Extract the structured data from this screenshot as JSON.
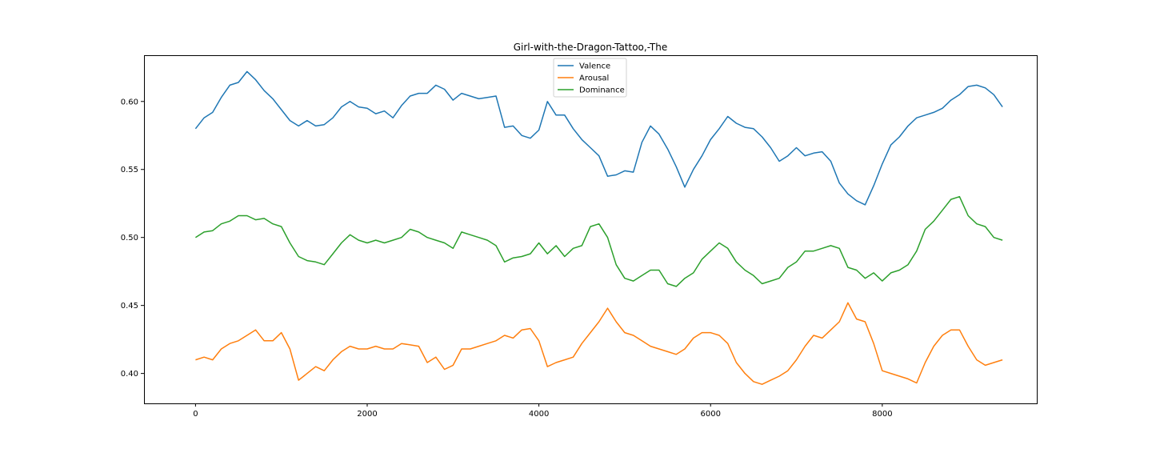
{
  "chart_data": {
    "type": "line",
    "title": "Girl-with-the-Dragon-Tattoo,-The",
    "xlabel": "",
    "ylabel": "",
    "xlim": [
      -600,
      9800
    ],
    "ylim": [
      0.378,
      0.634
    ],
    "x_ticks": [
      0,
      2000,
      4000,
      6000,
      8000
    ],
    "x_tick_labels": [
      "0",
      "2000",
      "4000",
      "6000",
      "8000"
    ],
    "y_ticks": [
      0.4,
      0.45,
      0.5,
      0.55,
      0.6
    ],
    "y_tick_labels": [
      "0.40",
      "0.45",
      "0.50",
      "0.55",
      "0.60"
    ],
    "grid": false,
    "legend_position": "top-center",
    "series": [
      {
        "name": "Valence",
        "color": "#1f77b4",
        "x": [
          0,
          100,
          200,
          300,
          400,
          500,
          600,
          700,
          800,
          900,
          1000,
          1100,
          1200,
          1300,
          1400,
          1500,
          1600,
          1700,
          1800,
          1900,
          2000,
          2100,
          2200,
          2300,
          2400,
          2500,
          2600,
          2700,
          2800,
          2900,
          3000,
          3100,
          3200,
          3300,
          3400,
          3500,
          3600,
          3700,
          3800,
          3900,
          4000,
          4100,
          4200,
          4300,
          4400,
          4500,
          4600,
          4700,
          4800,
          4900,
          5000,
          5100,
          5200,
          5300,
          5400,
          5500,
          5600,
          5700,
          5800,
          5900,
          6000,
          6100,
          6200,
          6300,
          6400,
          6500,
          6600,
          6700,
          6800,
          6900,
          7000,
          7100,
          7200,
          7300,
          7400,
          7500,
          7600,
          7700,
          7800,
          7900,
          8000,
          8100,
          8200,
          8300,
          8400,
          8500,
          8600,
          8700,
          8800,
          8900,
          9000,
          9100,
          9200,
          9300,
          9400
        ],
        "values": [
          0.58,
          0.588,
          0.592,
          0.603,
          0.612,
          0.614,
          0.622,
          0.616,
          0.608,
          0.602,
          0.594,
          0.586,
          0.582,
          0.586,
          0.582,
          0.583,
          0.588,
          0.596,
          0.6,
          0.596,
          0.595,
          0.591,
          0.593,
          0.588,
          0.597,
          0.604,
          0.606,
          0.606,
          0.612,
          0.609,
          0.601,
          0.606,
          0.604,
          0.602,
          0.603,
          0.604,
          0.581,
          0.582,
          0.575,
          0.573,
          0.579,
          0.6,
          0.59,
          0.59,
          0.58,
          0.572,
          0.566,
          0.56,
          0.545,
          0.546,
          0.549,
          0.548,
          0.57,
          0.582,
          0.576,
          0.565,
          0.552,
          0.537,
          0.55,
          0.56,
          0.572,
          0.58,
          0.589,
          0.584,
          0.581,
          0.58,
          0.574,
          0.566,
          0.556,
          0.56,
          0.566,
          0.56,
          0.562,
          0.563,
          0.556,
          0.54,
          0.532,
          0.527,
          0.524,
          0.538,
          0.554,
          0.568,
          0.574,
          0.582,
          0.588,
          0.59,
          0.592,
          0.595,
          0.601,
          0.605,
          0.611,
          0.612,
          0.61,
          0.605,
          0.596
        ]
      },
      {
        "name": "Arousal",
        "color": "#ff7f0e",
        "x": [
          0,
          100,
          200,
          300,
          400,
          500,
          600,
          700,
          800,
          900,
          1000,
          1100,
          1200,
          1300,
          1400,
          1500,
          1600,
          1700,
          1800,
          1900,
          2000,
          2100,
          2200,
          2300,
          2400,
          2500,
          2600,
          2700,
          2800,
          2900,
          3000,
          3100,
          3200,
          3300,
          3400,
          3500,
          3600,
          3700,
          3800,
          3900,
          4000,
          4100,
          4200,
          4300,
          4400,
          4500,
          4600,
          4700,
          4800,
          4900,
          5000,
          5100,
          5200,
          5300,
          5400,
          5500,
          5600,
          5700,
          5800,
          5900,
          6000,
          6100,
          6200,
          6300,
          6400,
          6500,
          6600,
          6700,
          6800,
          6900,
          7000,
          7100,
          7200,
          7300,
          7400,
          7500,
          7600,
          7700,
          7800,
          7900,
          8000,
          8100,
          8200,
          8300,
          8400,
          8500,
          8600,
          8700,
          8800,
          8900,
          9000,
          9100,
          9200,
          9300,
          9400
        ],
        "values": [
          0.41,
          0.412,
          0.41,
          0.418,
          0.422,
          0.424,
          0.428,
          0.432,
          0.424,
          0.424,
          0.43,
          0.418,
          0.395,
          0.4,
          0.405,
          0.402,
          0.41,
          0.416,
          0.42,
          0.418,
          0.418,
          0.42,
          0.418,
          0.418,
          0.422,
          0.421,
          0.42,
          0.408,
          0.412,
          0.403,
          0.406,
          0.418,
          0.418,
          0.42,
          0.422,
          0.424,
          0.428,
          0.426,
          0.432,
          0.433,
          0.424,
          0.405,
          0.408,
          0.41,
          0.412,
          0.422,
          0.43,
          0.438,
          0.448,
          0.438,
          0.43,
          0.428,
          0.424,
          0.42,
          0.418,
          0.416,
          0.414,
          0.418,
          0.426,
          0.43,
          0.43,
          0.428,
          0.422,
          0.408,
          0.4,
          0.394,
          0.392,
          0.395,
          0.398,
          0.402,
          0.41,
          0.42,
          0.428,
          0.426,
          0.432,
          0.438,
          0.452,
          0.44,
          0.438,
          0.422,
          0.402,
          0.4,
          0.398,
          0.396,
          0.393,
          0.408,
          0.42,
          0.428,
          0.432,
          0.432,
          0.42,
          0.41,
          0.406,
          0.408,
          0.41
        ]
      },
      {
        "name": "Dominance",
        "color": "#2ca02c",
        "x": [
          0,
          100,
          200,
          300,
          400,
          500,
          600,
          700,
          800,
          900,
          1000,
          1100,
          1200,
          1300,
          1400,
          1500,
          1600,
          1700,
          1800,
          1900,
          2000,
          2100,
          2200,
          2300,
          2400,
          2500,
          2600,
          2700,
          2800,
          2900,
          3000,
          3100,
          3200,
          3300,
          3400,
          3500,
          3600,
          3700,
          3800,
          3900,
          4000,
          4100,
          4200,
          4300,
          4400,
          4500,
          4600,
          4700,
          4800,
          4900,
          5000,
          5100,
          5200,
          5300,
          5400,
          5500,
          5600,
          5700,
          5800,
          5900,
          6000,
          6100,
          6200,
          6300,
          6400,
          6500,
          6600,
          6700,
          6800,
          6900,
          7000,
          7100,
          7200,
          7300,
          7400,
          7500,
          7600,
          7700,
          7800,
          7900,
          8000,
          8100,
          8200,
          8300,
          8400,
          8500,
          8600,
          8700,
          8800,
          8900,
          9000,
          9100,
          9200,
          9300,
          9400
        ],
        "values": [
          0.5,
          0.504,
          0.505,
          0.51,
          0.512,
          0.516,
          0.516,
          0.513,
          0.514,
          0.51,
          0.508,
          0.496,
          0.486,
          0.483,
          0.482,
          0.48,
          0.488,
          0.496,
          0.502,
          0.498,
          0.496,
          0.498,
          0.496,
          0.498,
          0.5,
          0.506,
          0.504,
          0.5,
          0.498,
          0.496,
          0.492,
          0.504,
          0.502,
          0.5,
          0.498,
          0.494,
          0.482,
          0.485,
          0.486,
          0.488,
          0.496,
          0.488,
          0.494,
          0.486,
          0.492,
          0.494,
          0.508,
          0.51,
          0.5,
          0.48,
          0.47,
          0.468,
          0.472,
          0.476,
          0.476,
          0.466,
          0.464,
          0.47,
          0.474,
          0.484,
          0.49,
          0.496,
          0.492,
          0.482,
          0.476,
          0.472,
          0.466,
          0.468,
          0.47,
          0.478,
          0.482,
          0.49,
          0.49,
          0.492,
          0.494,
          0.492,
          0.478,
          0.476,
          0.47,
          0.474,
          0.468,
          0.474,
          0.476,
          0.48,
          0.49,
          0.506,
          0.512,
          0.52,
          0.528,
          0.53,
          0.516,
          0.51,
          0.508,
          0.5,
          0.498
        ]
      }
    ]
  }
}
